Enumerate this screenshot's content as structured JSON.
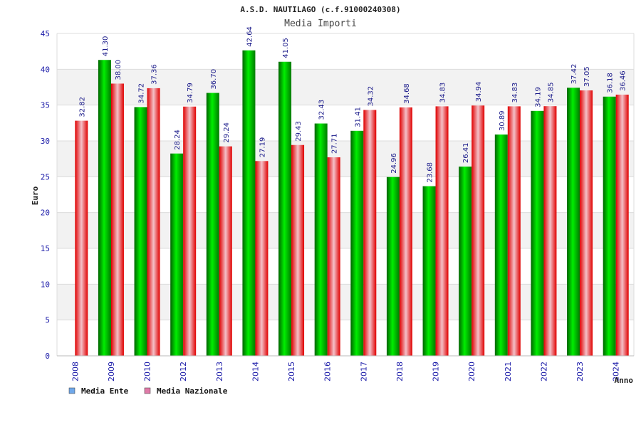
{
  "chart_data": {
    "type": "bar",
    "title": "A.S.D. NAUTILAGO (c.f.91000240308)",
    "subtitle": "Media Importi",
    "xlabel": "Anno",
    "ylabel": "Euro",
    "ylim": [
      0,
      45
    ],
    "ytick_step": 5,
    "grid": true,
    "legend_position": "bottom-left",
    "categories": [
      "2008",
      "2009",
      "2010",
      "2012",
      "2013",
      "2014",
      "2015",
      "2016",
      "2017",
      "2018",
      "2019",
      "2020",
      "2021",
      "2022",
      "2023",
      "2024"
    ],
    "series": [
      {
        "name": "Media Ente",
        "color": "#00aa00",
        "legend_color": "#6fa8ea",
        "values": [
          null,
          41.3,
          34.72,
          28.24,
          36.7,
          42.64,
          41.05,
          32.43,
          31.41,
          24.96,
          23.68,
          26.41,
          30.89,
          34.19,
          37.42,
          36.18
        ],
        "labels": [
          "",
          "41.30",
          "34.72",
          "28.24",
          "36.70",
          "42.64",
          "41.05",
          "32.43",
          "31.41",
          "24.96",
          "23.68",
          "26.41",
          "30.89",
          "34.19",
          "37.42",
          "36.18"
        ]
      },
      {
        "name": "Media Nazionale",
        "color": "#e8202a",
        "legend_color": "#e07aa8",
        "values": [
          32.82,
          38.0,
          37.36,
          34.79,
          29.24,
          27.19,
          29.43,
          27.71,
          34.32,
          34.68,
          34.83,
          34.94,
          34.83,
          34.85,
          37.05,
          36.46
        ],
        "labels": [
          "32.82",
          "38.00",
          "37.36",
          "34.79",
          "29.24",
          "27.19",
          "29.43",
          "27.71",
          "34.32",
          "34.68",
          "34.83",
          "34.94",
          "34.83",
          "34.85",
          "37.05",
          "36.46"
        ]
      }
    ]
  }
}
